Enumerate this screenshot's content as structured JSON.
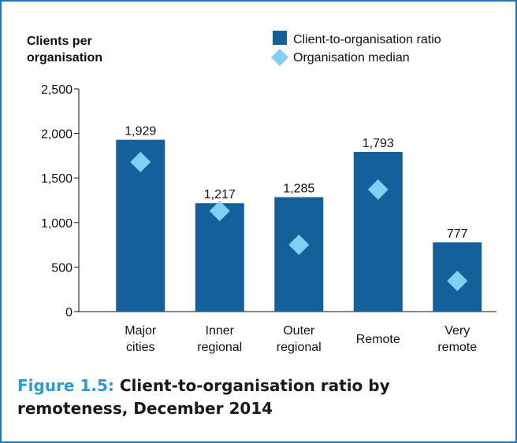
{
  "chart_data": {
    "type": "bar",
    "title": "Client-to-organisation ratio by remoteness, December 2014",
    "figure_label": "Figure 1.5:",
    "ylabel": [
      "Clients per",
      "organisation"
    ],
    "categories": [
      "Major cities",
      "Inner regional",
      "Outer regional",
      "Remote",
      "Very remote"
    ],
    "series": [
      {
        "name": "Client-to-organisation ratio",
        "color": "#13609a",
        "values": [
          1929,
          1217,
          1285,
          1793,
          777
        ],
        "value_labels": [
          "1,929",
          "1,217",
          "1,285",
          "1,793",
          "777"
        ]
      },
      {
        "name": "Organisation median",
        "color": "#7fd0f3",
        "marker": "diamond",
        "values": [
          1680,
          1130,
          750,
          1370,
          345
        ]
      }
    ],
    "ylim": [
      0,
      2500
    ],
    "yticks": [
      0,
      500,
      {
        "value": 1000,
        "label": "1,000"
      },
      {
        "value": 1500,
        "label": "1,500"
      },
      {
        "value": 2000,
        "label": "2,000"
      },
      {
        "value": 2500,
        "label": "2,500"
      }
    ]
  }
}
